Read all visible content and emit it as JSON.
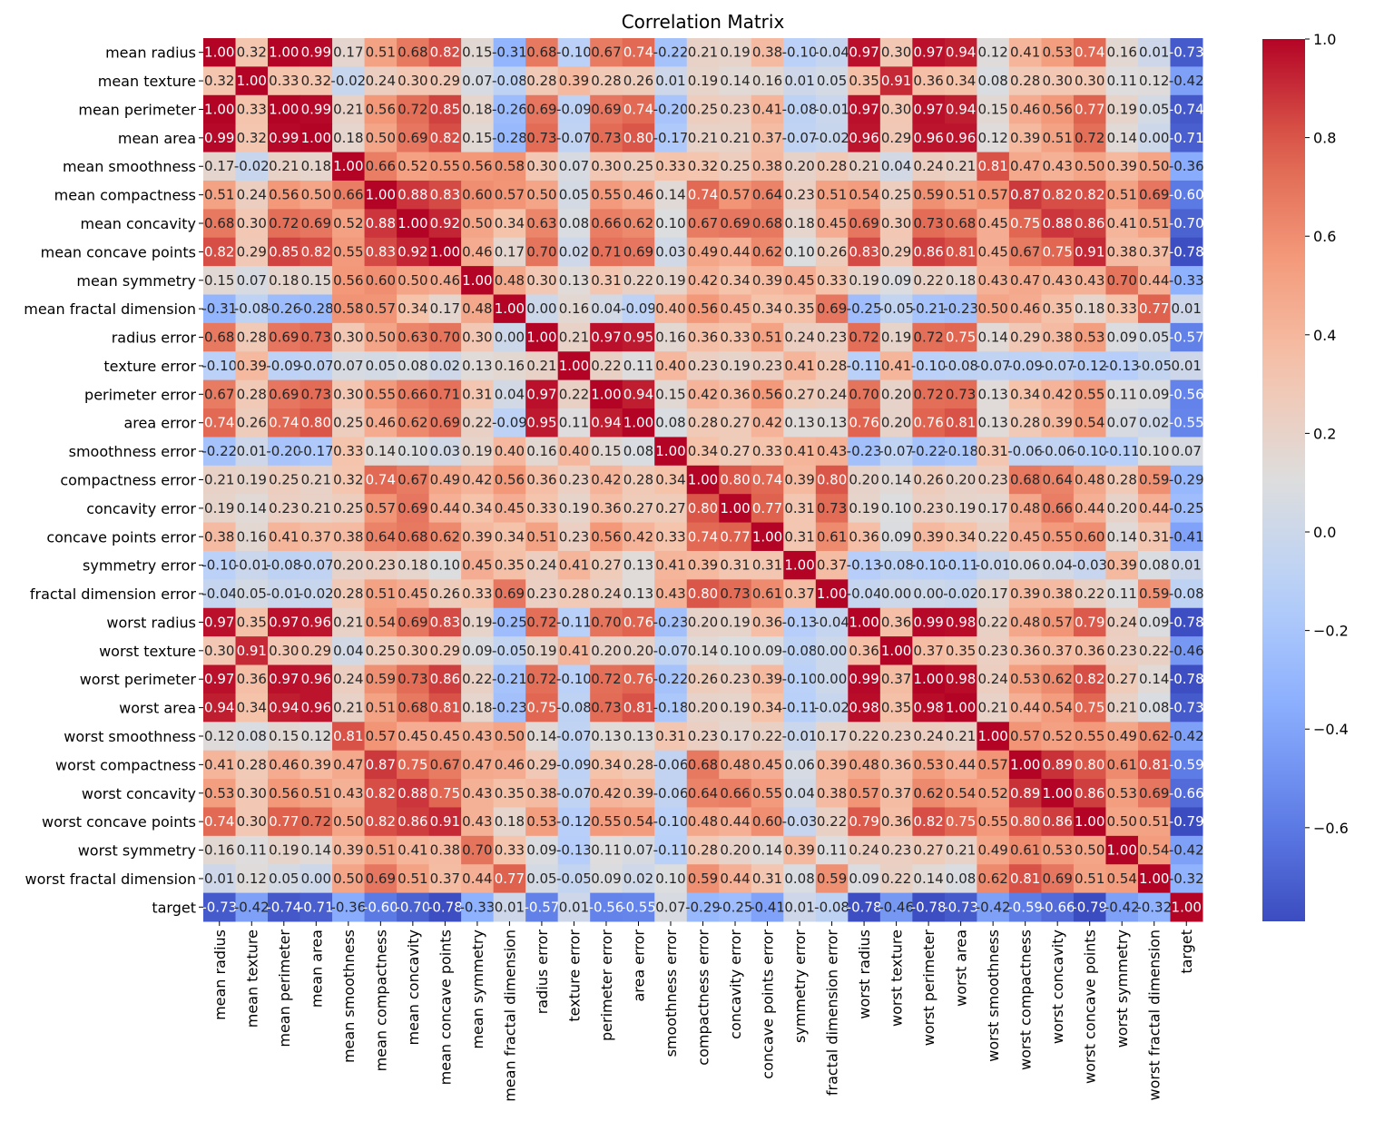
{
  "chart_data": {
    "type": "heatmap",
    "title": "Correlation Matrix",
    "colormap": "coolwarm",
    "vmin": -0.79,
    "vmax": 1.0,
    "labels": [
      "mean radius",
      "mean texture",
      "mean perimeter",
      "mean area",
      "mean smoothness",
      "mean compactness",
      "mean concavity",
      "mean concave points",
      "mean symmetry",
      "mean fractal dimension",
      "radius error",
      "texture error",
      "perimeter error",
      "area error",
      "smoothness error",
      "compactness error",
      "concavity error",
      "concave points error",
      "symmetry error",
      "fractal dimension error",
      "worst radius",
      "worst texture",
      "worst perimeter",
      "worst area",
      "worst smoothness",
      "worst compactness",
      "worst concavity",
      "worst concave points",
      "worst symmetry",
      "worst fractal dimension",
      "target"
    ],
    "matrix": [
      [
        1.0,
        0.32,
        1.0,
        0.99,
        0.17,
        0.51,
        0.68,
        0.82,
        0.15,
        -0.31,
        0.68,
        -0.1,
        0.67,
        0.74,
        -0.22,
        0.21,
        0.19,
        0.38,
        -0.1,
        -0.04,
        0.97,
        0.3,
        0.97,
        0.94,
        0.12,
        0.41,
        0.53,
        0.74,
        0.16,
        0.01,
        -0.73
      ],
      [
        0.32,
        1.0,
        0.33,
        0.32,
        -0.02,
        0.24,
        0.3,
        0.29,
        0.07,
        -0.08,
        0.28,
        0.39,
        0.28,
        0.26,
        0.01,
        0.19,
        0.14,
        0.16,
        0.01,
        0.05,
        0.35,
        0.91,
        0.36,
        0.34,
        0.08,
        0.28,
        0.3,
        0.3,
        0.11,
        0.12,
        -0.42
      ],
      [
        1.0,
        0.33,
        1.0,
        0.99,
        0.21,
        0.56,
        0.72,
        0.85,
        0.18,
        -0.26,
        0.69,
        -0.09,
        0.69,
        0.74,
        -0.2,
        0.25,
        0.23,
        0.41,
        -0.08,
        -0.01,
        0.97,
        0.3,
        0.97,
        0.94,
        0.15,
        0.46,
        0.56,
        0.77,
        0.19,
        0.05,
        -0.74
      ],
      [
        0.99,
        0.32,
        0.99,
        1.0,
        0.18,
        0.5,
        0.69,
        0.82,
        0.15,
        -0.28,
        0.73,
        -0.07,
        0.73,
        0.8,
        -0.17,
        0.21,
        0.21,
        0.37,
        -0.07,
        -0.02,
        0.96,
        0.29,
        0.96,
        0.96,
        0.12,
        0.39,
        0.51,
        0.72,
        0.14,
        0.0,
        -0.71
      ],
      [
        0.17,
        -0.02,
        0.21,
        0.18,
        1.0,
        0.66,
        0.52,
        0.55,
        0.56,
        0.58,
        0.3,
        0.07,
        0.3,
        0.25,
        0.33,
        0.32,
        0.25,
        0.38,
        0.2,
        0.28,
        0.21,
        0.04,
        0.24,
        0.21,
        0.81,
        0.47,
        0.43,
        0.5,
        0.39,
        0.5,
        -0.36
      ],
      [
        0.51,
        0.24,
        0.56,
        0.5,
        0.66,
        1.0,
        0.88,
        0.83,
        0.6,
        0.57,
        0.5,
        0.05,
        0.55,
        0.46,
        0.14,
        0.74,
        0.57,
        0.64,
        0.23,
        0.51,
        0.54,
        0.25,
        0.59,
        0.51,
        0.57,
        0.87,
        0.82,
        0.82,
        0.51,
        0.69,
        -0.6
      ],
      [
        0.68,
        0.3,
        0.72,
        0.69,
        0.52,
        0.88,
        1.0,
        0.92,
        0.5,
        0.34,
        0.63,
        0.08,
        0.66,
        0.62,
        0.1,
        0.67,
        0.69,
        0.68,
        0.18,
        0.45,
        0.69,
        0.3,
        0.73,
        0.68,
        0.45,
        0.75,
        0.88,
        0.86,
        0.41,
        0.51,
        -0.7
      ],
      [
        0.82,
        0.29,
        0.85,
        0.82,
        0.55,
        0.83,
        0.92,
        1.0,
        0.46,
        0.17,
        0.7,
        0.02,
        0.71,
        0.69,
        0.03,
        0.49,
        0.44,
        0.62,
        0.1,
        0.26,
        0.83,
        0.29,
        0.86,
        0.81,
        0.45,
        0.67,
        0.75,
        0.91,
        0.38,
        0.37,
        -0.78
      ],
      [
        0.15,
        0.07,
        0.18,
        0.15,
        0.56,
        0.6,
        0.5,
        0.46,
        1.0,
        0.48,
        0.3,
        0.13,
        0.31,
        0.22,
        0.19,
        0.42,
        0.34,
        0.39,
        0.45,
        0.33,
        0.19,
        0.09,
        0.22,
        0.18,
        0.43,
        0.47,
        0.43,
        0.43,
        0.7,
        0.44,
        -0.33
      ],
      [
        -0.31,
        -0.08,
        -0.26,
        -0.28,
        0.58,
        0.57,
        0.34,
        0.17,
        0.48,
        1.0,
        0.0,
        0.16,
        0.04,
        -0.09,
        0.4,
        0.56,
        0.45,
        0.34,
        0.35,
        0.69,
        -0.25,
        -0.05,
        -0.21,
        -0.23,
        0.5,
        0.46,
        0.35,
        0.18,
        0.33,
        0.77,
        0.01
      ],
      [
        0.68,
        0.28,
        0.69,
        0.73,
        0.3,
        0.5,
        0.63,
        0.7,
        0.3,
        0.0,
        1.0,
        0.21,
        0.97,
        0.95,
        0.16,
        0.36,
        0.33,
        0.51,
        0.24,
        0.23,
        0.72,
        0.19,
        0.72,
        0.75,
        0.14,
        0.29,
        0.38,
        0.53,
        0.09,
        0.05,
        -0.57
      ],
      [
        -0.1,
        0.39,
        -0.09,
        -0.07,
        0.07,
        0.05,
        0.08,
        0.02,
        0.13,
        0.16,
        0.21,
        1.0,
        0.22,
        0.11,
        0.4,
        0.23,
        0.19,
        0.23,
        0.41,
        0.28,
        -0.11,
        0.41,
        -0.1,
        -0.08,
        -0.07,
        -0.09,
        -0.07,
        -0.12,
        -0.13,
        -0.05,
        0.01
      ],
      [
        0.67,
        0.28,
        0.69,
        0.73,
        0.3,
        0.55,
        0.66,
        0.71,
        0.31,
        0.04,
        0.97,
        0.22,
        1.0,
        0.94,
        0.15,
        0.42,
        0.36,
        0.56,
        0.27,
        0.24,
        0.7,
        0.2,
        0.72,
        0.73,
        0.13,
        0.34,
        0.42,
        0.55,
        0.11,
        0.09,
        -0.56
      ],
      [
        0.74,
        0.26,
        0.74,
        0.8,
        0.25,
        0.46,
        0.62,
        0.69,
        0.22,
        -0.09,
        0.95,
        0.11,
        0.94,
        1.0,
        0.08,
        0.28,
        0.27,
        0.42,
        0.13,
        0.13,
        0.76,
        0.2,
        0.76,
        0.81,
        0.13,
        0.28,
        0.39,
        0.54,
        0.07,
        0.02,
        -0.55
      ],
      [
        -0.22,
        0.01,
        -0.2,
        -0.17,
        0.33,
        0.14,
        0.1,
        0.03,
        0.19,
        0.4,
        0.16,
        0.4,
        0.15,
        0.08,
        1.0,
        0.34,
        0.27,
        0.33,
        0.41,
        0.43,
        -0.23,
        -0.07,
        -0.22,
        -0.18,
        0.31,
        -0.06,
        -0.06,
        -0.1,
        -0.11,
        0.1,
        0.07
      ],
      [
        0.21,
        0.19,
        0.25,
        0.21,
        0.32,
        0.74,
        0.67,
        0.49,
        0.42,
        0.56,
        0.36,
        0.23,
        0.42,
        0.28,
        0.34,
        1.0,
        0.8,
        0.74,
        0.39,
        0.8,
        0.2,
        0.14,
        0.26,
        0.2,
        0.23,
        0.68,
        0.64,
        0.48,
        0.28,
        0.59,
        -0.29
      ],
      [
        0.19,
        0.14,
        0.23,
        0.21,
        0.25,
        0.57,
        0.69,
        0.44,
        0.34,
        0.45,
        0.33,
        0.19,
        0.36,
        0.27,
        0.27,
        0.8,
        1.0,
        0.77,
        0.31,
        0.73,
        0.19,
        0.1,
        0.23,
        0.19,
        0.17,
        0.48,
        0.66,
        0.44,
        0.2,
        0.44,
        -0.25
      ],
      [
        0.38,
        0.16,
        0.41,
        0.37,
        0.38,
        0.64,
        0.68,
        0.62,
        0.39,
        0.34,
        0.51,
        0.23,
        0.56,
        0.42,
        0.33,
        0.74,
        0.77,
        1.0,
        0.31,
        0.61,
        0.36,
        0.09,
        0.39,
        0.34,
        0.22,
        0.45,
        0.55,
        0.6,
        0.14,
        0.31,
        -0.41
      ],
      [
        -0.1,
        -0.01,
        -0.08,
        -0.07,
        0.2,
        0.23,
        0.18,
        0.1,
        0.45,
        0.35,
        0.24,
        0.41,
        0.27,
        0.13,
        0.41,
        0.39,
        0.31,
        0.31,
        1.0,
        0.37,
        -0.13,
        -0.08,
        -0.1,
        -0.11,
        -0.01,
        0.06,
        0.04,
        -0.03,
        0.39,
        0.08,
        0.01
      ],
      [
        -0.04,
        0.05,
        -0.01,
        -0.02,
        0.28,
        0.51,
        0.45,
        0.26,
        0.33,
        0.69,
        0.23,
        0.28,
        0.24,
        0.13,
        0.43,
        0.8,
        0.73,
        0.61,
        0.37,
        1.0,
        -0.04,
        -0.0,
        -0.0,
        -0.02,
        0.17,
        0.39,
        0.38,
        0.22,
        0.11,
        0.59,
        -0.08
      ],
      [
        0.97,
        0.35,
        0.97,
        0.96,
        0.21,
        0.54,
        0.69,
        0.83,
        0.19,
        -0.25,
        0.72,
        -0.11,
        0.7,
        0.76,
        -0.23,
        0.2,
        0.19,
        0.36,
        -0.13,
        -0.04,
        1.0,
        0.36,
        0.99,
        0.98,
        0.22,
        0.48,
        0.57,
        0.79,
        0.24,
        0.09,
        -0.78
      ],
      [
        0.3,
        0.91,
        0.3,
        0.29,
        0.04,
        0.25,
        0.3,
        0.29,
        0.09,
        -0.05,
        0.19,
        0.41,
        0.2,
        0.2,
        -0.07,
        0.14,
        0.1,
        0.09,
        -0.08,
        -0.0,
        0.36,
        1.0,
        0.37,
        0.35,
        0.23,
        0.36,
        0.37,
        0.36,
        0.23,
        0.22,
        -0.46
      ],
      [
        0.97,
        0.36,
        0.97,
        0.96,
        0.24,
        0.59,
        0.73,
        0.86,
        0.22,
        -0.21,
        0.72,
        -0.1,
        0.72,
        0.76,
        -0.22,
        0.26,
        0.23,
        0.39,
        -0.1,
        -0.0,
        0.99,
        0.37,
        1.0,
        0.98,
        0.24,
        0.53,
        0.62,
        0.82,
        0.27,
        0.14,
        -0.78
      ],
      [
        0.94,
        0.34,
        0.94,
        0.96,
        0.21,
        0.51,
        0.68,
        0.81,
        0.18,
        -0.23,
        0.75,
        -0.08,
        0.73,
        0.81,
        -0.18,
        0.2,
        0.19,
        0.34,
        -0.11,
        -0.02,
        0.98,
        0.35,
        0.98,
        1.0,
        0.21,
        0.44,
        0.54,
        0.75,
        0.21,
        0.08,
        -0.73
      ],
      [
        0.12,
        0.08,
        0.15,
        0.12,
        0.81,
        0.57,
        0.45,
        0.45,
        0.43,
        0.5,
        0.14,
        -0.07,
        0.13,
        0.13,
        0.31,
        0.23,
        0.17,
        0.22,
        -0.01,
        0.17,
        0.22,
        0.23,
        0.24,
        0.21,
        1.0,
        0.57,
        0.52,
        0.55,
        0.49,
        0.62,
        -0.42
      ],
      [
        0.41,
        0.28,
        0.46,
        0.39,
        0.47,
        0.87,
        0.75,
        0.67,
        0.47,
        0.46,
        0.29,
        -0.09,
        0.34,
        0.28,
        -0.06,
        0.68,
        0.48,
        0.45,
        0.06,
        0.39,
        0.48,
        0.36,
        0.53,
        0.44,
        0.57,
        1.0,
        0.89,
        0.8,
        0.61,
        0.81,
        -0.59
      ],
      [
        0.53,
        0.3,
        0.56,
        0.51,
        0.43,
        0.82,
        0.88,
        0.75,
        0.43,
        0.35,
        0.38,
        -0.07,
        0.42,
        0.39,
        -0.06,
        0.64,
        0.66,
        0.55,
        0.04,
        0.38,
        0.57,
        0.37,
        0.62,
        0.54,
        0.52,
        0.89,
        1.0,
        0.86,
        0.53,
        0.69,
        -0.66
      ],
      [
        0.74,
        0.3,
        0.77,
        0.72,
        0.5,
        0.82,
        0.86,
        0.91,
        0.43,
        0.18,
        0.53,
        -0.12,
        0.55,
        0.54,
        -0.1,
        0.48,
        0.44,
        0.6,
        -0.03,
        0.22,
        0.79,
        0.36,
        0.82,
        0.75,
        0.55,
        0.8,
        0.86,
        1.0,
        0.5,
        0.51,
        -0.79
      ],
      [
        0.16,
        0.11,
        0.19,
        0.14,
        0.39,
        0.51,
        0.41,
        0.38,
        0.7,
        0.33,
        0.09,
        -0.13,
        0.11,
        0.07,
        -0.11,
        0.28,
        0.2,
        0.14,
        0.39,
        0.11,
        0.24,
        0.23,
        0.27,
        0.21,
        0.49,
        0.61,
        0.53,
        0.5,
        1.0,
        0.54,
        -0.42
      ],
      [
        0.01,
        0.12,
        0.05,
        0.0,
        0.5,
        0.69,
        0.51,
        0.37,
        0.44,
        0.77,
        0.05,
        -0.05,
        0.09,
        0.02,
        0.1,
        0.59,
        0.44,
        0.31,
        0.08,
        0.59,
        0.09,
        0.22,
        0.14,
        0.08,
        0.62,
        0.81,
        0.69,
        0.51,
        0.54,
        1.0,
        -0.32
      ],
      [
        -0.73,
        -0.42,
        -0.74,
        -0.71,
        -0.36,
        -0.6,
        -0.7,
        -0.78,
        -0.33,
        0.01,
        -0.57,
        0.01,
        -0.56,
        -0.55,
        0.07,
        -0.29,
        -0.25,
        -0.41,
        0.01,
        -0.08,
        -0.78,
        -0.46,
        -0.78,
        -0.73,
        -0.42,
        -0.59,
        -0.66,
        -0.79,
        -0.42,
        -0.32,
        1.0
      ]
    ],
    "colorbar": {
      "ticks": [
        1.0,
        0.8,
        0.6,
        0.4,
        0.2,
        0.0,
        -0.2,
        -0.4,
        -0.6
      ],
      "tick_labels": [
        "1.0",
        "0.8",
        "0.6",
        "0.4",
        "0.2",
        "0.0",
        "−0.2",
        "−0.4",
        "−0.6"
      ]
    }
  }
}
